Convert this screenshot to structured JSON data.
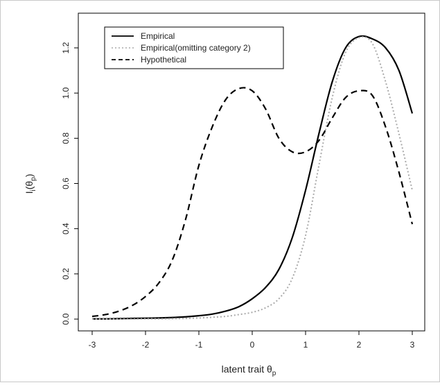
{
  "chart_data": {
    "type": "line",
    "title": "",
    "xlabel": "latent trait  θ",
    "xlabel_sub": "p",
    "ylabel": "I",
    "ylabel_sub": "i",
    "ylabel_paren_open": "(θ",
    "ylabel_paren_sub": "p",
    "ylabel_paren_close": ")",
    "xlim": [
      -3,
      3
    ],
    "ylim": [
      0,
      1.25
    ],
    "xticks": [
      -3,
      -2,
      -1,
      0,
      1,
      2,
      3
    ],
    "yticks": [
      0.0,
      0.2,
      0.4,
      0.6,
      0.8,
      1.0,
      1.2
    ],
    "xtick_labels": [
      "-3",
      "-2",
      "-1",
      "0",
      "1",
      "2",
      "3"
    ],
    "ytick_labels": [
      "0.0",
      "0.2",
      "0.4",
      "0.6",
      "0.8",
      "1.0",
      "1.2"
    ],
    "grid": false,
    "legend_position": "top-left",
    "x": [
      -3.0,
      -2.75,
      -2.5,
      -2.25,
      -2.0,
      -1.75,
      -1.5,
      -1.25,
      -1.0,
      -0.75,
      -0.5,
      -0.25,
      0.0,
      0.25,
      0.5,
      0.75,
      1.0,
      1.25,
      1.5,
      1.75,
      2.0,
      2.25,
      2.5,
      2.75,
      3.0
    ],
    "series": [
      {
        "name": "Empirical",
        "style": "solid",
        "color": "#000000",
        "values": [
          0.001,
          0.001,
          0.002,
          0.003,
          0.004,
          0.005,
          0.007,
          0.01,
          0.015,
          0.022,
          0.035,
          0.055,
          0.09,
          0.14,
          0.22,
          0.36,
          0.57,
          0.82,
          1.05,
          1.2,
          1.25,
          1.24,
          1.2,
          1.1,
          0.91
        ]
      },
      {
        "name": "Empirical(omitting category 2)",
        "style": "dotted",
        "color": "#aaaaaa",
        "values": [
          0.0,
          0.0,
          0.0,
          0.0,
          0.001,
          0.001,
          0.002,
          0.003,
          0.005,
          0.008,
          0.012,
          0.02,
          0.03,
          0.05,
          0.09,
          0.18,
          0.37,
          0.68,
          0.98,
          1.18,
          1.245,
          1.22,
          1.05,
          0.82,
          0.57
        ]
      },
      {
        "name": "Hypothetical",
        "style": "dashed",
        "color": "#000000",
        "values": [
          0.012,
          0.02,
          0.035,
          0.06,
          0.1,
          0.16,
          0.26,
          0.44,
          0.68,
          0.85,
          0.97,
          1.02,
          1.01,
          0.93,
          0.8,
          0.74,
          0.74,
          0.79,
          0.89,
          0.98,
          1.01,
          0.99,
          0.85,
          0.65,
          0.42
        ]
      }
    ]
  }
}
